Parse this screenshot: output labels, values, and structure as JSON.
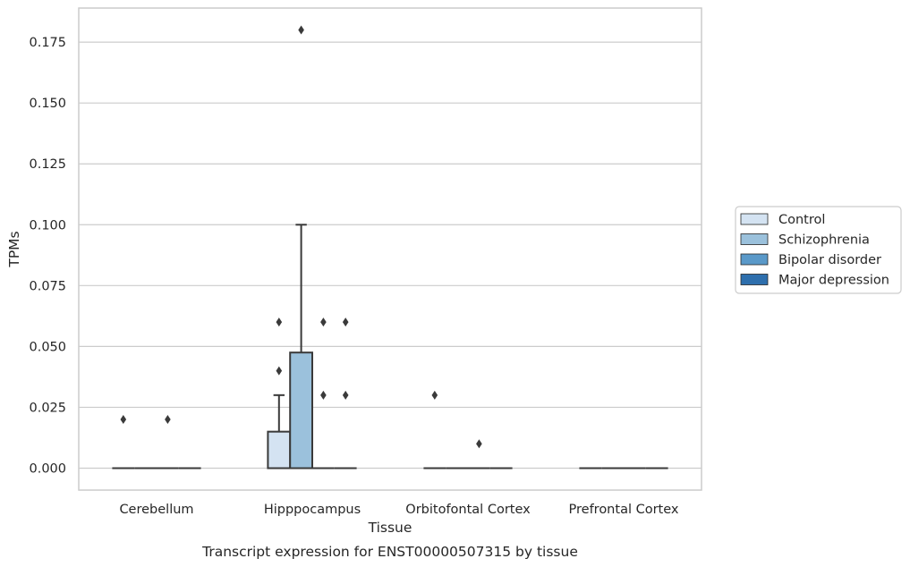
{
  "chart_data": {
    "type": "box",
    "caption": "Transcript expression for ENST00000507315 by tissue",
    "xlabel": "Tissue",
    "ylabel": "TPMs",
    "ylim": [
      -0.009,
      0.189
    ],
    "yticks": [
      "0.000",
      "0.025",
      "0.050",
      "0.075",
      "0.100",
      "0.125",
      "0.150",
      "0.175"
    ],
    "grid": true,
    "legend_position": "right",
    "categories": [
      "Cerebellum",
      "Hipppocampus",
      "Orbitofontal Cortex",
      "Prefrontal Cortex"
    ],
    "series": [
      {
        "name": "Control",
        "color": "#d4e3f2",
        "boxes": [
          {
            "q1": 0,
            "median": 0,
            "q3": 0,
            "whisker_low": 0,
            "whisker_high": 0,
            "outliers": [
              0.02
            ]
          },
          {
            "q1": 0,
            "median": 0,
            "q3": 0.015,
            "whisker_low": 0,
            "whisker_high": 0.03,
            "outliers": [
              0.04,
              0.06
            ]
          },
          {
            "q1": 0,
            "median": 0,
            "q3": 0,
            "whisker_low": 0,
            "whisker_high": 0,
            "outliers": [
              0.03
            ]
          },
          {
            "q1": 0,
            "median": 0,
            "q3": 0,
            "whisker_low": 0,
            "whisker_high": 0,
            "outliers": []
          }
        ]
      },
      {
        "name": "Schizophrenia",
        "color": "#9bc1dc",
        "boxes": [
          {
            "q1": 0,
            "median": 0,
            "q3": 0,
            "whisker_low": 0,
            "whisker_high": 0,
            "outliers": []
          },
          {
            "q1": 0,
            "median": 0,
            "q3": 0.0475,
            "whisker_low": 0,
            "whisker_high": 0.1,
            "outliers": [
              0.18
            ]
          },
          {
            "q1": 0,
            "median": 0,
            "q3": 0,
            "whisker_low": 0,
            "whisker_high": 0,
            "outliers": []
          },
          {
            "q1": 0,
            "median": 0,
            "q3": 0,
            "whisker_low": 0,
            "whisker_high": 0,
            "outliers": []
          }
        ]
      },
      {
        "name": "Bipolar disorder",
        "color": "#5a99c9",
        "boxes": [
          {
            "q1": 0,
            "median": 0,
            "q3": 0,
            "whisker_low": 0,
            "whisker_high": 0,
            "outliers": [
              0.02
            ]
          },
          {
            "q1": 0,
            "median": 0,
            "q3": 0,
            "whisker_low": 0,
            "whisker_high": 0,
            "outliers": [
              0.03,
              0.06
            ]
          },
          {
            "q1": 0,
            "median": 0,
            "q3": 0,
            "whisker_low": 0,
            "whisker_high": 0,
            "outliers": [
              0.01
            ]
          },
          {
            "q1": 0,
            "median": 0,
            "q3": 0,
            "whisker_low": 0,
            "whisker_high": 0,
            "outliers": []
          }
        ]
      },
      {
        "name": "Major depression",
        "color": "#2e6fad",
        "boxes": [
          {
            "q1": 0,
            "median": 0,
            "q3": 0,
            "whisker_low": 0,
            "whisker_high": 0,
            "outliers": []
          },
          {
            "q1": 0,
            "median": 0,
            "q3": 0,
            "whisker_low": 0,
            "whisker_high": 0,
            "outliers": [
              0.03,
              0.06
            ]
          },
          {
            "q1": 0,
            "median": 0,
            "q3": 0,
            "whisker_low": 0,
            "whisker_high": 0,
            "outliers": []
          },
          {
            "q1": 0,
            "median": 0,
            "q3": 0,
            "whisker_low": 0,
            "whisker_high": 0,
            "outliers": []
          }
        ]
      }
    ],
    "colors": {
      "grid": "#cccccc",
      "frame": "#cccccc",
      "line": "#3a3a3a",
      "outlier": "#3a3a3a",
      "text": "#262626"
    }
  }
}
